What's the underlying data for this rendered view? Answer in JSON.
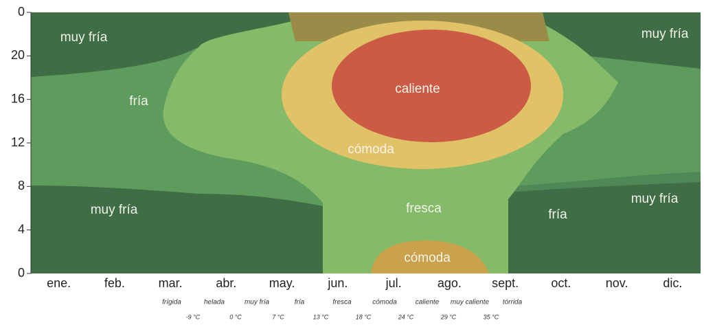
{
  "chart_data": {
    "type": "contour",
    "categories": [
      "ene.",
      "feb.",
      "mar.",
      "abr.",
      "may.",
      "jun.",
      "jul.",
      "ago.",
      "sept.",
      "oct.",
      "nov.",
      "dic."
    ],
    "ylim": [
      0,
      24
    ],
    "yticks": [
      {
        "value": 24,
        "label": "0"
      },
      20,
      16,
      12,
      8,
      4,
      0
    ],
    "annotations": [
      "muy fría",
      "muy fría",
      "fría",
      "caliente",
      "cómoda",
      "muy fría",
      "muy fría",
      "fresca",
      "fría",
      "cómoda"
    ],
    "legend": {
      "items": [
        "frígida",
        "helada",
        "muy fría",
        "fría",
        "fresca",
        "cómoda",
        "caliente",
        "muy caliente",
        "tórrida"
      ],
      "thresholds": [
        {
          "value": -9,
          "label": "-9 °C"
        },
        {
          "value": 0,
          "label": "0 °C"
        },
        {
          "value": 7,
          "label": "7 °C"
        },
        {
          "value": 13,
          "label": "13 °C"
        },
        {
          "value": 18,
          "label": "18 °C"
        },
        {
          "value": 24,
          "label": "24 °C"
        },
        {
          "value": 29,
          "label": "29 °C"
        },
        {
          "value": 35,
          "label": "35 °C"
        }
      ]
    }
  }
}
